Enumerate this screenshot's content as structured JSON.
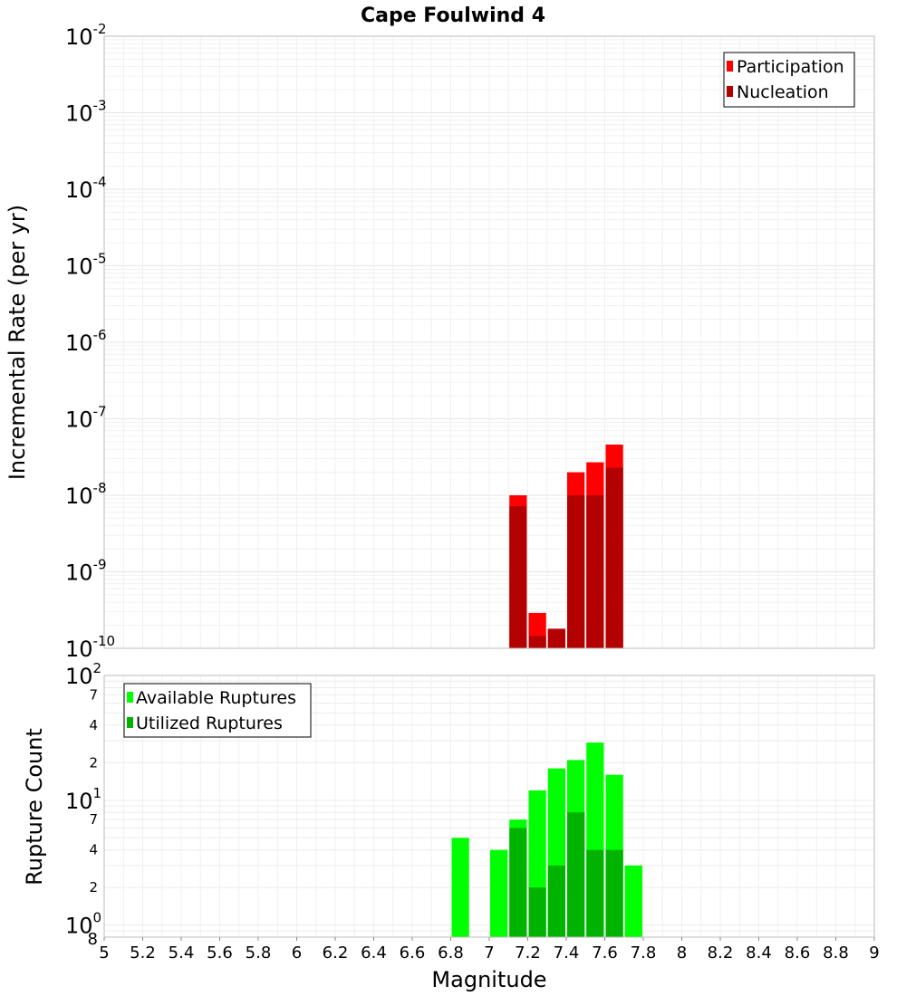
{
  "chart_data": [
    {
      "type": "bar",
      "title": "Cape Foulwind 4",
      "xlabel": "",
      "ylabel": "Incremental Rate (per yr)",
      "yscale": "log",
      "ylim": [
        1e-10,
        0.01
      ],
      "xlim": [
        5,
        9
      ],
      "grid": true,
      "legend_position": "top-right",
      "y_major_ticks": [
        {
          "base": "10",
          "exp": "-10",
          "value": 1e-10
        },
        {
          "base": "10",
          "exp": "-9",
          "value": 1e-09
        },
        {
          "base": "10",
          "exp": "-8",
          "value": 1e-08
        },
        {
          "base": "10",
          "exp": "-7",
          "value": 1e-07
        },
        {
          "base": "10",
          "exp": "-6",
          "value": 1e-06
        },
        {
          "base": "10",
          "exp": "-5",
          "value": 1e-05
        },
        {
          "base": "10",
          "exp": "-4",
          "value": 0.0001
        },
        {
          "base": "10",
          "exp": "-3",
          "value": 0.001
        },
        {
          "base": "10",
          "exp": "-2",
          "value": 0.01
        }
      ],
      "bar_width": 0.1,
      "series": [
        {
          "name": "Participation",
          "color": "#ff0000",
          "x": [
            7.15,
            7.25,
            7.35,
            7.45,
            7.55,
            7.65
          ],
          "values": [
            1e-08,
            2.9e-10,
            1.8e-10,
            2e-08,
            2.7e-08,
            4.6e-08
          ]
        },
        {
          "name": "Nucleation",
          "color": "#b30000",
          "x": [
            7.15,
            7.25,
            7.35,
            7.45,
            7.55,
            7.65
          ],
          "values": [
            7.2e-09,
            1.45e-10,
            1.8e-10,
            1e-08,
            1e-08,
            2.3e-08
          ]
        }
      ]
    },
    {
      "type": "bar",
      "title": "",
      "xlabel": "Magnitude",
      "ylabel": "Rupture Count",
      "yscale": "log",
      "ylim": [
        0.8,
        100
      ],
      "xlim": [
        5,
        9
      ],
      "grid": true,
      "legend_position": "top-left",
      "x_ticks": [
        "5",
        "5.2",
        "5.4",
        "5.6",
        "5.8",
        "6",
        "6.2",
        "6.4",
        "6.6",
        "6.8",
        "7",
        "7.2",
        "7.4",
        "7.6",
        "7.8",
        "8",
        "8.2",
        "8.4",
        "8.6",
        "8.8",
        "9"
      ],
      "y_major_ticks": [
        {
          "base": "10",
          "exp": "0",
          "value": 1
        },
        {
          "base": "10",
          "exp": "1",
          "value": 10
        },
        {
          "base": "10",
          "exp": "2",
          "value": 100
        }
      ],
      "y_minor_ticks": [
        {
          "label": "8",
          "value": 0.8
        },
        {
          "label": "2",
          "value": 2
        },
        {
          "label": "4",
          "value": 4
        },
        {
          "label": "7",
          "value": 7
        },
        {
          "label": "2",
          "value": 20
        },
        {
          "label": "4",
          "value": 40
        },
        {
          "label": "7",
          "value": 70
        }
      ],
      "bar_width": 0.1,
      "series": [
        {
          "name": "Available Ruptures",
          "color": "#00ff00",
          "x": [
            6.85,
            7.05,
            7.15,
            7.25,
            7.35,
            7.45,
            7.55,
            7.65,
            7.75
          ],
          "values": [
            5,
            4,
            7,
            12,
            18,
            21,
            29,
            16,
            3
          ]
        },
        {
          "name": "Utilized Ruptures",
          "color": "#00b300",
          "x": [
            7.15,
            7.25,
            7.35,
            7.45,
            7.55,
            7.65
          ],
          "values": [
            6,
            2,
            3,
            8,
            4,
            4
          ]
        }
      ]
    }
  ]
}
